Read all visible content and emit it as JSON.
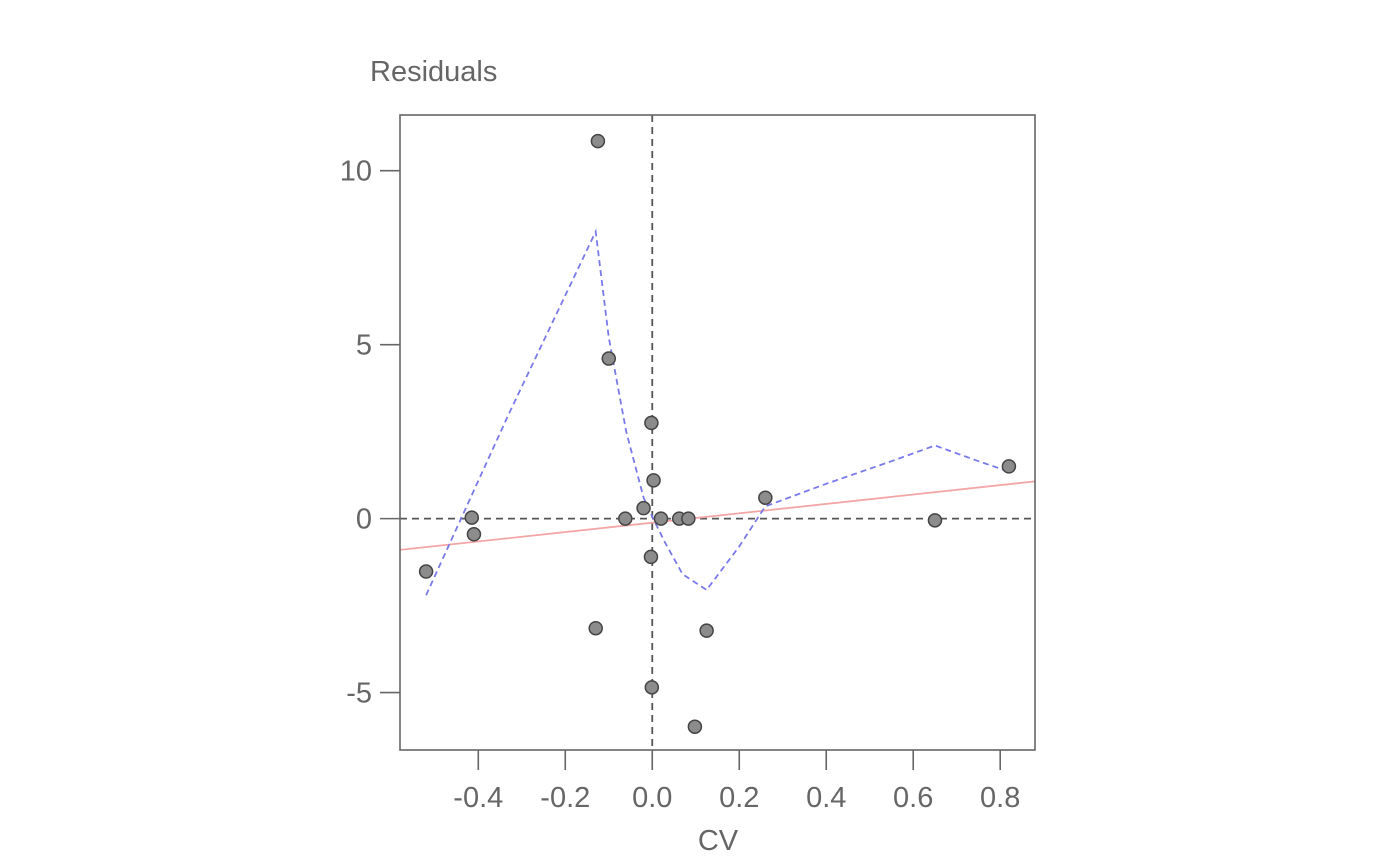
{
  "chart_data": {
    "type": "scatter",
    "ylabel": "Residuals",
    "xlabel": "CV",
    "xlim": [
      -0.58,
      0.88
    ],
    "ylim": [
      -6.65,
      11.6
    ],
    "x_ticks": [
      -0.4,
      -0.2,
      0.0,
      0.2,
      0.4,
      0.6,
      0.8
    ],
    "x_tick_labels": [
      "-0.4",
      "-0.2",
      "0.0",
      "0.2",
      "0.4",
      "0.6",
      "0.8"
    ],
    "y_ticks": [
      10,
      5,
      0,
      -5
    ],
    "y_tick_labels": [
      "10",
      "5",
      "0",
      "-5"
    ],
    "reference_lines": {
      "x": 0,
      "y": 0,
      "style": "dashed",
      "color": "#555555"
    },
    "points": [
      {
        "x": -0.52,
        "y": -1.52
      },
      {
        "x": -0.415,
        "y": 0.03
      },
      {
        "x": -0.41,
        "y": -0.45
      },
      {
        "x": -0.13,
        "y": -3.15
      },
      {
        "x": -0.125,
        "y": 10.85
      },
      {
        "x": -0.1,
        "y": 4.6
      },
      {
        "x": -0.062,
        "y": 0.0
      },
      {
        "x": -0.02,
        "y": 0.3
      },
      {
        "x": -0.002,
        "y": 2.75
      },
      {
        "x": -0.003,
        "y": -1.1
      },
      {
        "x": -0.001,
        "y": -4.85
      },
      {
        "x": 0.003,
        "y": 1.1
      },
      {
        "x": 0.02,
        "y": 0.0
      },
      {
        "x": 0.062,
        "y": 0.0
      },
      {
        "x": 0.083,
        "y": 0.0
      },
      {
        "x": 0.098,
        "y": -5.98
      },
      {
        "x": 0.125,
        "y": -3.22
      },
      {
        "x": 0.26,
        "y": 0.6
      },
      {
        "x": 0.65,
        "y": -0.05
      },
      {
        "x": 0.82,
        "y": 1.5
      }
    ],
    "point_color": "#8c8c8c",
    "point_edge": "#444444",
    "series": [
      {
        "type": "line",
        "style": "solid",
        "color": "#f4a6a6",
        "x": [
          -0.58,
          0.88
        ],
        "y": [
          -0.9,
          1.07
        ]
      },
      {
        "type": "line",
        "style": "dashed",
        "color": "#7a7aea",
        "x": [
          -0.52,
          -0.33,
          -0.13,
          -0.1,
          -0.06,
          -0.02,
          0.0,
          0.03,
          0.07,
          0.125,
          0.2,
          0.26,
          0.4,
          0.55,
          0.65,
          0.75,
          0.82
        ],
        "y": [
          -2.2,
          3.0,
          8.25,
          5.2,
          2.5,
          0.6,
          0.05,
          -0.7,
          -1.6,
          -2.05,
          -0.8,
          0.35,
          1.0,
          1.65,
          2.1,
          1.65,
          1.35
        ]
      }
    ],
    "grid": false
  }
}
